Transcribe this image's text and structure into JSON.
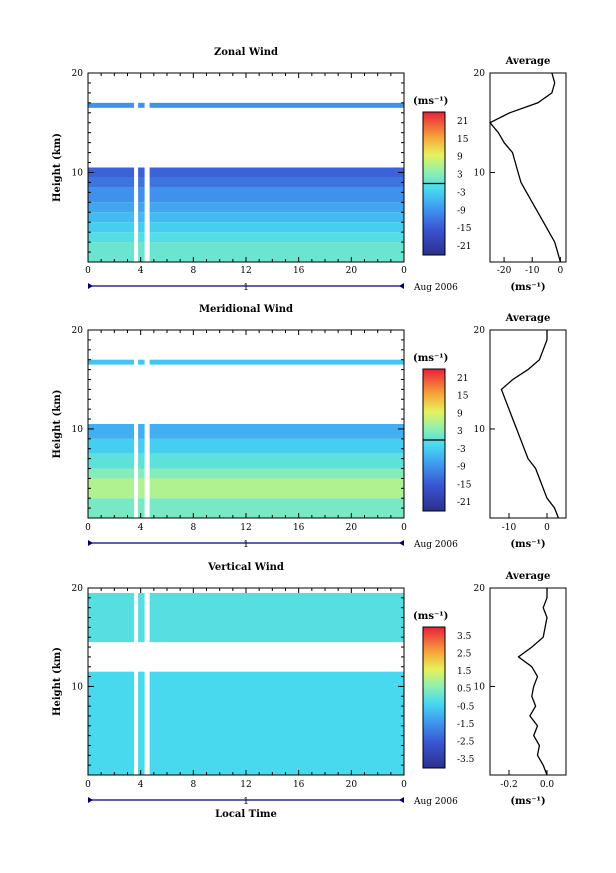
{
  "chart_data": [
    {
      "type": "heatmap",
      "title": "Zonal Wind",
      "ylabel": "Height (km)",
      "xticks": [
        "0",
        "4",
        "8",
        "12",
        "16",
        "20",
        "0"
      ],
      "yticks": [
        "10",
        "20"
      ],
      "day_label": "1",
      "date_label": "Aug 2006",
      "xlim": [
        0,
        24
      ],
      "ylim": [
        1,
        20
      ],
      "colorbar": {
        "unit": "(ms⁻¹)",
        "ticks": [
          "21",
          "15",
          "9",
          "3",
          "-3",
          "-9",
          "-15",
          "-21"
        ],
        "range": [
          -24,
          24
        ]
      },
      "bands": [
        {
          "y0": 1,
          "y1": 3,
          "value": 1
        },
        {
          "y0": 3,
          "y1": 4,
          "value": -1
        },
        {
          "y0": 4,
          "y1": 5,
          "value": -3
        },
        {
          "y0": 5,
          "y1": 6,
          "value": -5
        },
        {
          "y0": 6,
          "y1": 7,
          "value": -7
        },
        {
          "y0": 7,
          "y1": 8.5,
          "value": -9
        },
        {
          "y0": 8.5,
          "y1": 9.5,
          "value": -12
        },
        {
          "y0": 9.5,
          "y1": 10.5,
          "value": -14
        },
        {
          "y0": 16.5,
          "y1": 17,
          "value": -9
        }
      ],
      "average": {
        "xlabel": "(ms⁻¹)",
        "title": "Average",
        "xticks": [
          "-20",
          "-10",
          "0"
        ],
        "xlim": [
          -25,
          2
        ],
        "profile": [
          [
            0,
            1
          ],
          [
            -1,
            2
          ],
          [
            -2,
            3
          ],
          [
            -4,
            4
          ],
          [
            -6,
            5
          ],
          [
            -8,
            6
          ],
          [
            -10,
            7
          ],
          [
            -12,
            8
          ],
          [
            -14,
            9
          ],
          [
            -15,
            10
          ],
          [
            -16,
            11
          ],
          [
            -17,
            12
          ],
          [
            -20,
            13
          ],
          [
            -22,
            14
          ],
          [
            -25,
            15
          ],
          [
            -18,
            16
          ],
          [
            -8,
            17
          ],
          [
            -3,
            18
          ],
          [
            -2,
            19
          ],
          [
            -3,
            20
          ]
        ]
      }
    },
    {
      "type": "heatmap",
      "title": "Meridional Wind",
      "ylabel": "Height (km)",
      "xticks": [
        "0",
        "4",
        "8",
        "12",
        "16",
        "20",
        "0"
      ],
      "yticks": [
        "10",
        "20"
      ],
      "day_label": "1",
      "date_label": "Aug 2006",
      "xlim": [
        0,
        24
      ],
      "ylim": [
        1,
        20
      ],
      "colorbar": {
        "unit": "(ms⁻¹)",
        "ticks": [
          "21",
          "15",
          "9",
          "3",
          "-3",
          "-9",
          "-15",
          "-21"
        ],
        "range": [
          -24,
          24
        ]
      },
      "bands": [
        {
          "y0": 1,
          "y1": 3,
          "value": 2
        },
        {
          "y0": 3,
          "y1": 5,
          "value": 6
        },
        {
          "y0": 5,
          "y1": 6,
          "value": 3
        },
        {
          "y0": 6,
          "y1": 7.5,
          "value": 0
        },
        {
          "y0": 7.5,
          "y1": 9,
          "value": -3
        },
        {
          "y0": 9,
          "y1": 10.5,
          "value": -6
        },
        {
          "y0": 16.5,
          "y1": 17,
          "value": -4
        }
      ],
      "average": {
        "xlabel": "(ms⁻¹)",
        "title": "Average",
        "xticks": [
          "-10",
          "0"
        ],
        "xlim": [
          -15,
          5
        ],
        "profile": [
          [
            3,
            1
          ],
          [
            2,
            2
          ],
          [
            0,
            3
          ],
          [
            -1,
            4
          ],
          [
            -2,
            5
          ],
          [
            -3,
            6
          ],
          [
            -5,
            7
          ],
          [
            -6,
            8
          ],
          [
            -7,
            9
          ],
          [
            -8,
            10
          ],
          [
            -9,
            11
          ],
          [
            -10,
            12
          ],
          [
            -11,
            13
          ],
          [
            -12,
            14
          ],
          [
            -9,
            15
          ],
          [
            -5,
            16
          ],
          [
            -2,
            17
          ],
          [
            -1,
            18
          ],
          [
            0,
            19
          ],
          [
            0,
            20
          ]
        ]
      }
    },
    {
      "type": "heatmap",
      "title": "Vertical Wind",
      "ylabel": "Height (km)",
      "xlabel": "Local Time",
      "xticks": [
        "0",
        "4",
        "8",
        "12",
        "16",
        "20",
        "0"
      ],
      "yticks": [
        "10",
        "20"
      ],
      "day_label": "1",
      "date_label": "Aug 2006",
      "xlim": [
        0,
        24
      ],
      "ylim": [
        1,
        20
      ],
      "colorbar": {
        "unit": "(ms⁻¹)",
        "ticks": [
          "3.5",
          "2.5",
          "1.5",
          "0.5",
          "-0.5",
          "-1.5",
          "-2.5",
          "-3.5"
        ],
        "range": [
          -4,
          4
        ]
      },
      "bands": [
        {
          "y0": 1,
          "y1": 11.5,
          "value": -0.3
        },
        {
          "y0": 14.5,
          "y1": 19.5,
          "value": -0.1
        }
      ],
      "average": {
        "xlabel": "(ms⁻¹)",
        "title": "Average",
        "xticks": [
          "-0.2",
          "0.0"
        ],
        "xlim": [
          -0.3,
          0.1
        ],
        "profile": [
          [
            0,
            1
          ],
          [
            -0.02,
            2
          ],
          [
            -0.05,
            3
          ],
          [
            -0.04,
            4
          ],
          [
            -0.07,
            5
          ],
          [
            -0.05,
            6
          ],
          [
            -0.09,
            7
          ],
          [
            -0.06,
            8
          ],
          [
            -0.08,
            9
          ],
          [
            -0.07,
            10
          ],
          [
            -0.05,
            11
          ],
          [
            -0.08,
            12
          ],
          [
            -0.15,
            13
          ],
          [
            -0.08,
            14
          ],
          [
            -0.02,
            15
          ],
          [
            -0.01,
            16
          ],
          [
            0,
            17
          ],
          [
            -0.02,
            18
          ],
          [
            0,
            19
          ],
          [
            0,
            20
          ]
        ]
      }
    }
  ]
}
